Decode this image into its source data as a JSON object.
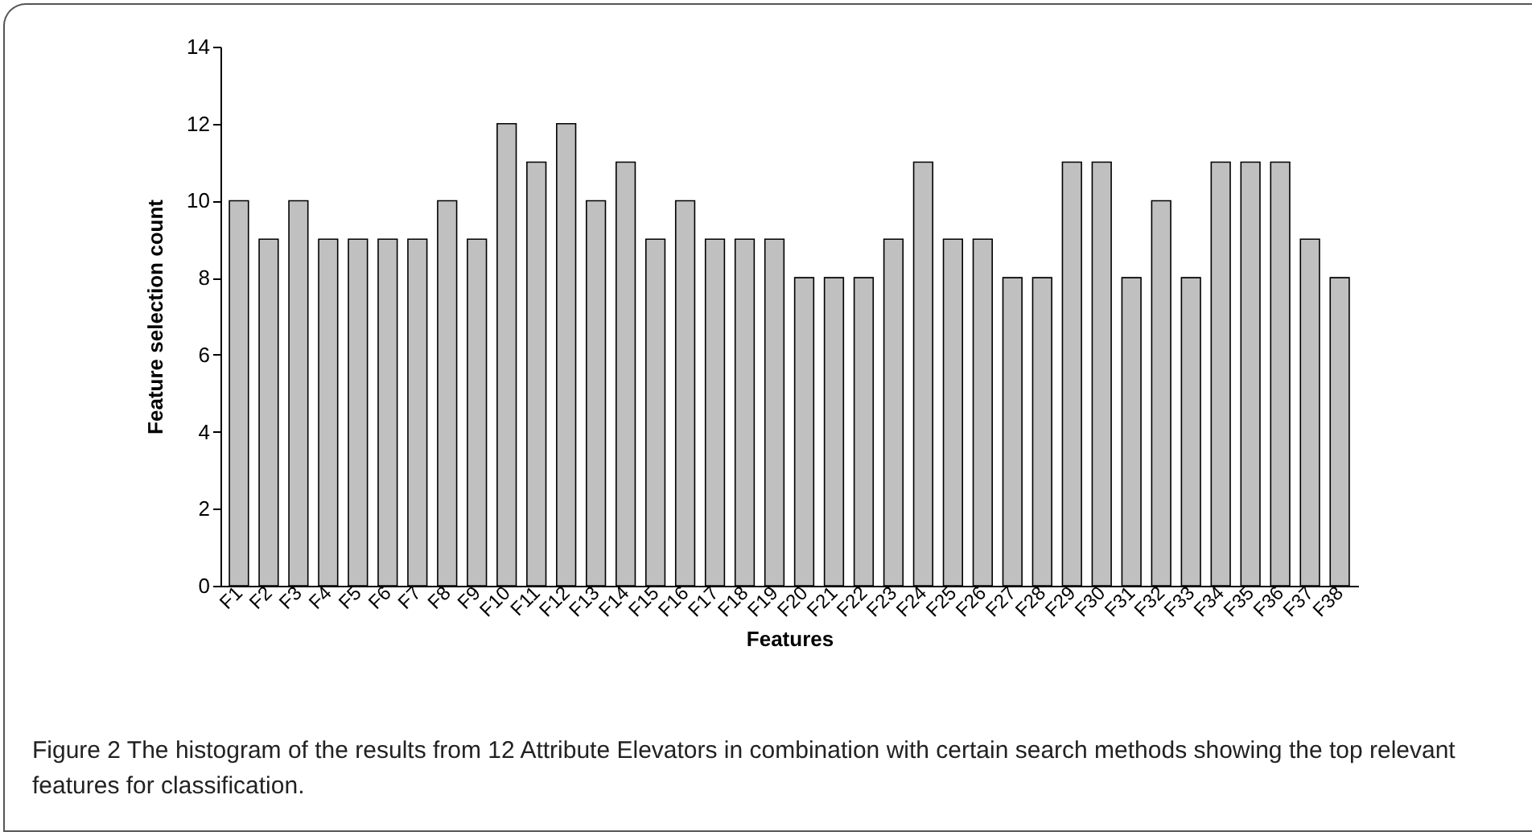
{
  "chart_data": {
    "type": "bar",
    "xlabel": "Features",
    "ylabel": "Feature selection count",
    "categories": [
      "F1",
      "F2",
      "F3",
      "F4",
      "F5",
      "F6",
      "F7",
      "F8",
      "F9",
      "F10",
      "F11",
      "F12",
      "F13",
      "F14",
      "F15",
      "F16",
      "F17",
      "F18",
      "F19",
      "F20",
      "F21",
      "F22",
      "F23",
      "F24",
      "F25",
      "F26",
      "F27",
      "F28",
      "F29",
      "F30",
      "F31",
      "F32",
      "F33",
      "F34",
      "F35",
      "F36",
      "F37",
      "F38"
    ],
    "values": [
      10,
      9,
      10,
      9,
      9,
      9,
      9,
      10,
      9,
      12,
      11,
      12,
      10,
      11,
      9,
      10,
      9,
      9,
      9,
      8,
      8,
      8,
      9,
      11,
      9,
      9,
      8,
      8,
      11,
      11,
      8,
      10,
      8,
      11,
      11,
      11,
      9,
      8
    ],
    "color": "#c0c0c0",
    "ylim": [
      0,
      14
    ],
    "yticks": [
      0,
      2,
      4,
      6,
      8,
      10,
      12,
      14
    ],
    "grid": false,
    "annotations": [
      "Figure 2 The histogram of the results from 12 Attribute Elevators in combination with certain search methods showing the top relevant features for classification."
    ]
  }
}
